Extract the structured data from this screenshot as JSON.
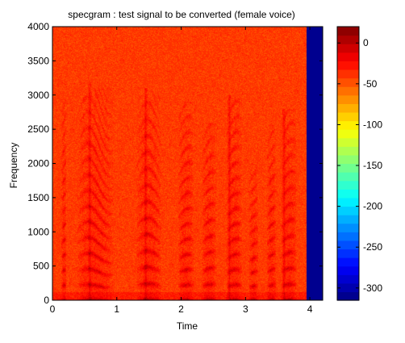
{
  "chart_data": {
    "type": "heatmap",
    "title": "specgram : test signal to be converted (female voice)",
    "xlabel": "Time",
    "ylabel": "Frequency",
    "xlim": [
      0,
      4.2
    ],
    "ylim": [
      0,
      4000
    ],
    "xticks": [
      0,
      1,
      2,
      3,
      4
    ],
    "yticks": [
      0,
      500,
      1000,
      1500,
      2000,
      2500,
      3000,
      3500,
      4000
    ],
    "signal_end_time": 3.95,
    "colorbar": {
      "ticks": [
        0,
        -50,
        -100,
        -150,
        -200,
        -250,
        -300
      ],
      "range": [
        -315,
        20
      ],
      "colormap": "jet",
      "levels": 32
    },
    "background_level": -40,
    "padding_level": -315,
    "voiced_segments": [
      {
        "start": 0.14,
        "end": 0.22,
        "f0": 210,
        "max_freq": 3000
      },
      {
        "start": 0.38,
        "end": 0.95,
        "f0": 205,
        "max_freq": 3100
      },
      {
        "start": 1.3,
        "end": 1.7,
        "f0": 215,
        "max_freq": 3000
      },
      {
        "start": 1.95,
        "end": 2.2,
        "f0": 200,
        "max_freq": 2900
      },
      {
        "start": 2.32,
        "end": 2.55,
        "f0": 210,
        "max_freq": 2600
      },
      {
        "start": 2.7,
        "end": 2.95,
        "f0": 200,
        "max_freq": 3000
      },
      {
        "start": 3.05,
        "end": 3.2,
        "f0": 190,
        "max_freq": 2000
      },
      {
        "start": 3.33,
        "end": 3.48,
        "f0": 205,
        "max_freq": 2500
      },
      {
        "start": 3.55,
        "end": 3.8,
        "f0": 210,
        "max_freq": 2800
      }
    ],
    "fricatives": [
      {
        "time": 0.58,
        "max_freq": 3200
      },
      {
        "time": 1.45,
        "max_freq": 3100
      },
      {
        "time": 2.75,
        "max_freq": 3000
      },
      {
        "time": 3.6,
        "max_freq": 2800
      }
    ]
  }
}
